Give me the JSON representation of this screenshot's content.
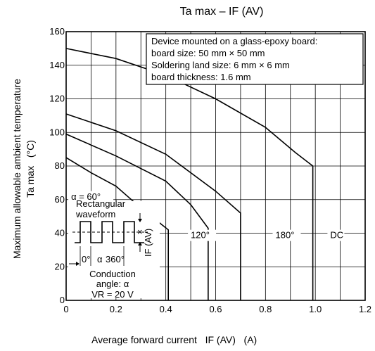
{
  "chart_data": {
    "type": "line",
    "title": "Ta max – IF (AV)",
    "xlabel": "Average forward current   IF (AV)   (A)",
    "ylabel_line1": "Maximum allowable ambient temperature",
    "ylabel_line2": "Ta max   (°C)",
    "xlim": [
      0,
      1.2
    ],
    "ylim": [
      0,
      160
    ],
    "x_ticks": [
      0,
      0.2,
      0.4,
      0.6,
      0.8,
      1.0,
      1.2
    ],
    "x_tick_labels": [
      "0",
      "0.2",
      "0.4",
      "0.6",
      "0.8",
      "1.0",
      "1.2"
    ],
    "y_ticks": [
      0,
      20,
      40,
      60,
      80,
      100,
      120,
      140,
      160
    ],
    "y_tick_labels": [
      "0",
      "20",
      "40",
      "60",
      "80",
      "100",
      "120",
      "140",
      "160"
    ],
    "grid": true,
    "series": [
      {
        "name": "DC",
        "x": [
          0,
          0.2,
          0.4,
          0.6,
          0.8,
          0.92,
          0.99,
          0.99
        ],
        "y": [
          150,
          144,
          134,
          120,
          103,
          88,
          80,
          0
        ]
      },
      {
        "name": "180°",
        "x": [
          0,
          0.2,
          0.4,
          0.6,
          0.7,
          0.7
        ],
        "y": [
          111,
          101,
          87,
          65,
          52,
          0
        ]
      },
      {
        "name": "120°",
        "x": [
          0,
          0.2,
          0.4,
          0.5,
          0.57,
          0.57
        ],
        "y": [
          99,
          86,
          71,
          57,
          43,
          0
        ]
      },
      {
        "name": "α = 60°",
        "x": [
          0,
          0.1,
          0.2,
          0.3,
          0.41,
          0.41
        ],
        "y": [
          85,
          76,
          68,
          55,
          42,
          0
        ]
      }
    ],
    "series_labels": [
      {
        "text": "DC",
        "x": 1.06,
        "y": 37
      },
      {
        "text": "180°",
        "x": 0.84,
        "y": 37
      },
      {
        "text": "120°",
        "x": 0.5,
        "y": 37
      },
      {
        "text": "α = 60°",
        "x": 0.02,
        "y": 60
      }
    ],
    "annotation_box": [
      "Device mounted on a glass-epoxy board:",
      "board size: 50 mm × 50 mm",
      "Soldering land size: 6 mm × 6 mm",
      "board thickness: 1.6 mm"
    ],
    "inset": {
      "title_line1": "Rectangular",
      "title_line2": "waveform",
      "axis_label": "IF (AV)",
      "zero_label": "0°",
      "alpha_label": "α",
      "period_label": "360°",
      "conduction_line1": "Conduction",
      "conduction_line2": "angle: α",
      "vr_label": "VR = 20 V"
    }
  }
}
